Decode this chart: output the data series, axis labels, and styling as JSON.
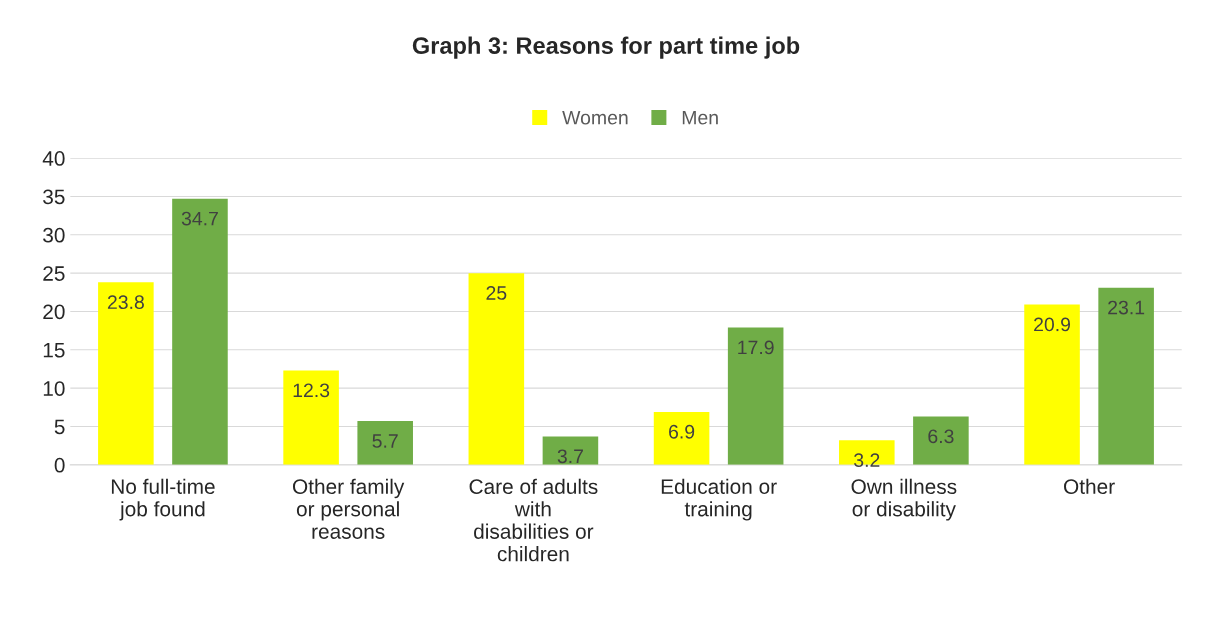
{
  "chart_data": {
    "type": "bar",
    "title": "Graph 3: Reasons for part time job",
    "categories": [
      "No full-time\njob found",
      "Other family\nor personal\nreasons",
      "Care of adults\nwith\ndisabilities or\nchildren",
      "Education or\ntraining",
      "Own illness\nor disability",
      "Other"
    ],
    "series": [
      {
        "name": "Women",
        "color": "#ffff00",
        "values": [
          23.8,
          12.3,
          25,
          6.9,
          3.2,
          20.9
        ]
      },
      {
        "name": "Men",
        "color": "#70ad47",
        "values": [
          34.7,
          5.7,
          3.7,
          17.9,
          6.3,
          23.1
        ]
      }
    ],
    "ylim": [
      0,
      40
    ],
    "yticks": [
      0,
      5,
      10,
      15,
      20,
      25,
      30,
      35,
      40
    ],
    "grid": "y",
    "legend": "top",
    "data_labels": true
  }
}
